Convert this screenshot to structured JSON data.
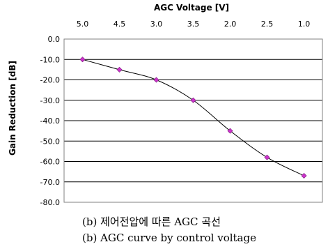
{
  "chart_data": {
    "type": "line",
    "xlabel": "AGC Voltage [V]",
    "ylabel": "Gain Reduction [dB]",
    "categories": [
      "5.0",
      "4.5",
      "3.0",
      "3.5",
      "2.0",
      "2.5",
      "1.0"
    ],
    "series": [
      {
        "values": [
          -10,
          -15,
          -20,
          -30,
          -45,
          -58,
          -67
        ]
      }
    ],
    "y_ticks": [
      "0.0",
      "-10.0",
      "-20.0",
      "-30.0",
      "-40.0",
      "-50.0",
      "-60.0",
      "-70.0",
      "-80.0"
    ],
    "ylim": [
      -80,
      0
    ],
    "x_axis_position": "top",
    "grid": true,
    "legend": "none",
    "colors": {
      "line": "#000000",
      "marker": "#cc33cc",
      "grid": "#000000"
    }
  },
  "caption": {
    "korean": "(b) 제어전압에 따른 AGC 곡선",
    "english": "(b) AGC curve by control voltage"
  }
}
